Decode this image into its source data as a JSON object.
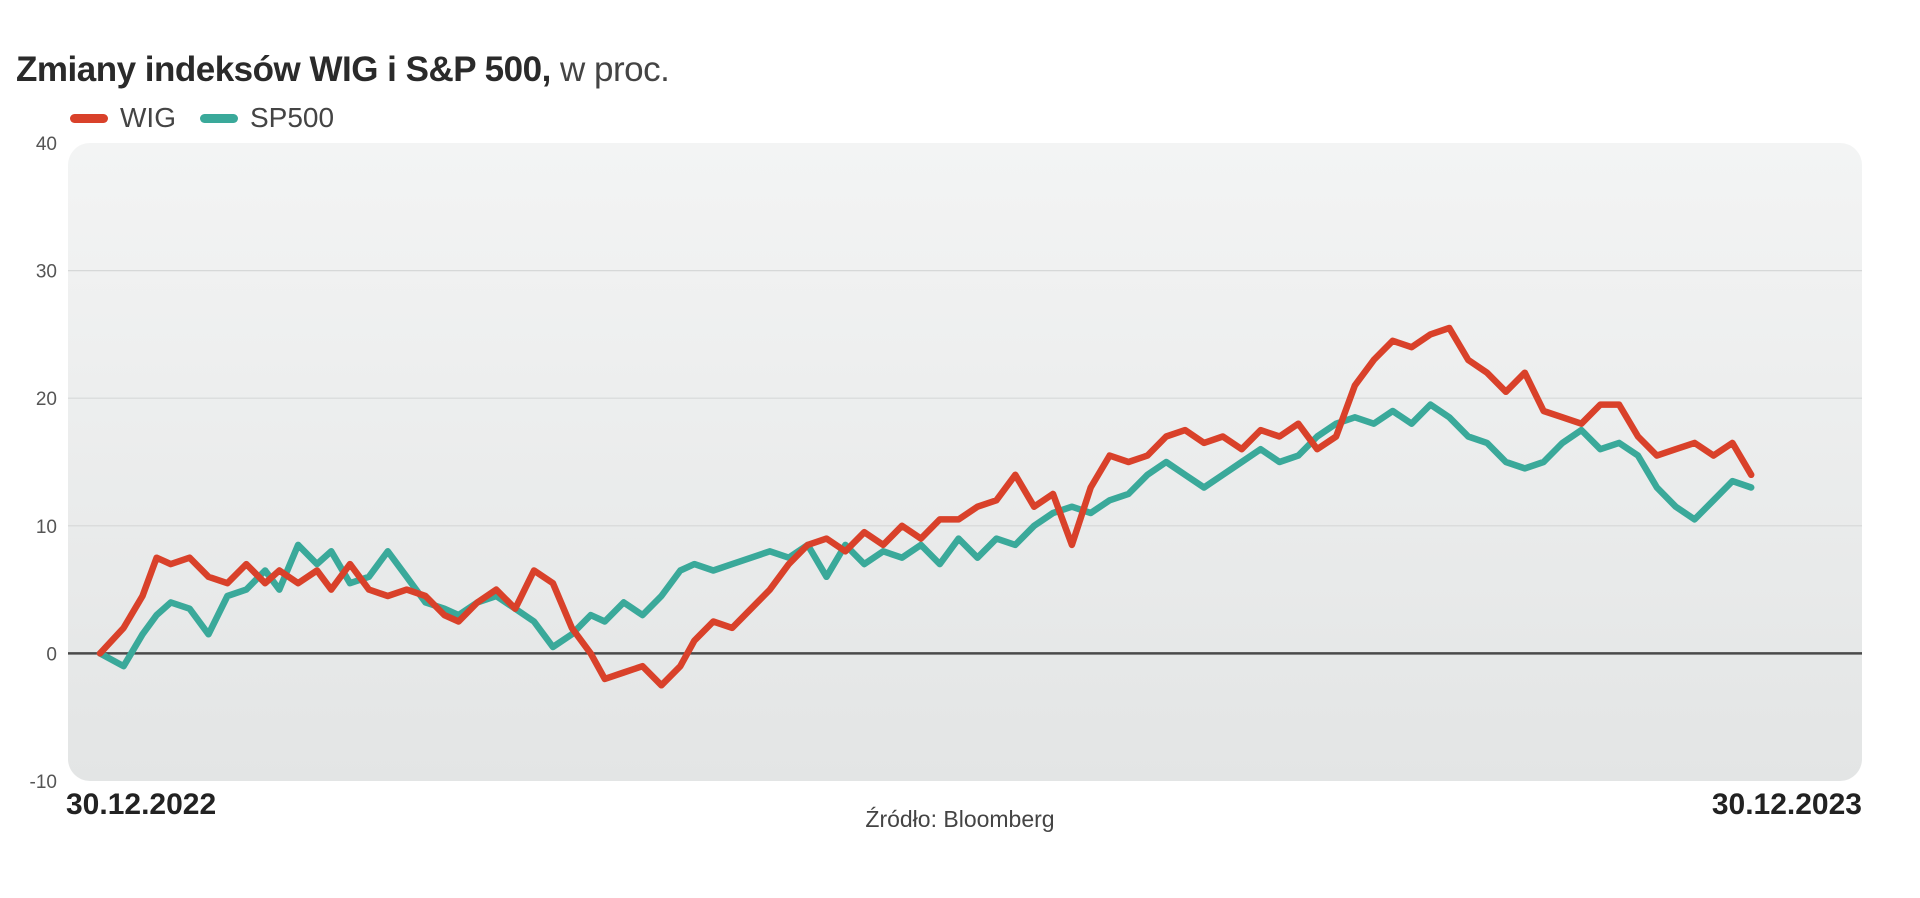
{
  "title": {
    "bold": "Zmiany indeksów WIG i S&P 500,",
    "normal": " w proc."
  },
  "source": "Źródło: Bloomberg",
  "chart_data": {
    "type": "line",
    "title": "Zmiany indeksów WIG i S&P 500, w proc.",
    "x_tick_labels": [
      "30.12.2022",
      "30.12.2023"
    ],
    "x_range": [
      "2022-12-30",
      "2023-12-30"
    ],
    "ylim": [
      -10,
      40
    ],
    "yticks": [
      -10,
      0,
      10,
      20,
      30,
      40
    ],
    "grid": true,
    "legend_position": "top-left",
    "series": [
      {
        "name": "WIG",
        "color": "#d9412a",
        "points": [
          [
            "2022-12-30",
            0
          ],
          [
            "2023-01-04",
            2
          ],
          [
            "2023-01-08",
            4.5
          ],
          [
            "2023-01-11",
            7.5
          ],
          [
            "2023-01-14",
            7
          ],
          [
            "2023-01-18",
            7.5
          ],
          [
            "2023-01-22",
            6
          ],
          [
            "2023-01-26",
            5.5
          ],
          [
            "2023-01-30",
            7
          ],
          [
            "2023-02-03",
            5.5
          ],
          [
            "2023-02-06",
            6.5
          ],
          [
            "2023-02-10",
            5.5
          ],
          [
            "2023-02-14",
            6.5
          ],
          [
            "2023-02-17",
            5
          ],
          [
            "2023-02-21",
            7
          ],
          [
            "2023-02-25",
            5
          ],
          [
            "2023-03-01",
            4.5
          ],
          [
            "2023-03-05",
            5
          ],
          [
            "2023-03-09",
            4.5
          ],
          [
            "2023-03-13",
            3
          ],
          [
            "2023-03-16",
            2.5
          ],
          [
            "2023-03-20",
            4
          ],
          [
            "2023-03-24",
            5
          ],
          [
            "2023-03-28",
            3.5
          ],
          [
            "2023-04-01",
            6.5
          ],
          [
            "2023-04-05",
            5.5
          ],
          [
            "2023-04-09",
            2
          ],
          [
            "2023-04-13",
            0
          ],
          [
            "2023-04-16",
            -2
          ],
          [
            "2023-04-20",
            -1.5
          ],
          [
            "2023-04-24",
            -1
          ],
          [
            "2023-04-28",
            -2.5
          ],
          [
            "2023-05-02",
            -1
          ],
          [
            "2023-05-05",
            1
          ],
          [
            "2023-05-09",
            2.5
          ],
          [
            "2023-05-13",
            2
          ],
          [
            "2023-05-17",
            3.5
          ],
          [
            "2023-05-21",
            5
          ],
          [
            "2023-05-25",
            7
          ],
          [
            "2023-05-29",
            8.5
          ],
          [
            "2023-06-02",
            9
          ],
          [
            "2023-06-06",
            8
          ],
          [
            "2023-06-10",
            9.5
          ],
          [
            "2023-06-14",
            8.5
          ],
          [
            "2023-06-18",
            10
          ],
          [
            "2023-06-22",
            9
          ],
          [
            "2023-06-26",
            10.5
          ],
          [
            "2023-06-30",
            10.5
          ],
          [
            "2023-07-04",
            11.5
          ],
          [
            "2023-07-08",
            12
          ],
          [
            "2023-07-12",
            14
          ],
          [
            "2023-07-16",
            11.5
          ],
          [
            "2023-07-20",
            12.5
          ],
          [
            "2023-07-24",
            8.5
          ],
          [
            "2023-07-28",
            13
          ],
          [
            "2023-08-01",
            15.5
          ],
          [
            "2023-08-05",
            15
          ],
          [
            "2023-08-09",
            15.5
          ],
          [
            "2023-08-13",
            17
          ],
          [
            "2023-08-17",
            17.5
          ],
          [
            "2023-08-21",
            16.5
          ],
          [
            "2023-08-25",
            17
          ],
          [
            "2023-08-29",
            16
          ],
          [
            "2023-09-02",
            17.5
          ],
          [
            "2023-09-06",
            17
          ],
          [
            "2023-09-10",
            18
          ],
          [
            "2023-09-14",
            16
          ],
          [
            "2023-09-18",
            17
          ],
          [
            "2023-09-22",
            21
          ],
          [
            "2023-09-26",
            23
          ],
          [
            "2023-09-30",
            24.5
          ],
          [
            "2023-10-04",
            24
          ],
          [
            "2023-10-08",
            25
          ],
          [
            "2023-10-12",
            25.5
          ],
          [
            "2023-10-16",
            23
          ],
          [
            "2023-10-20",
            22
          ],
          [
            "2023-10-24",
            20.5
          ],
          [
            "2023-10-28",
            22
          ],
          [
            "2023-11-01",
            19
          ],
          [
            "2023-11-05",
            18.5
          ],
          [
            "2023-11-09",
            18
          ],
          [
            "2023-11-13",
            19.5
          ],
          [
            "2023-11-17",
            19.5
          ],
          [
            "2023-11-21",
            17
          ],
          [
            "2023-11-25",
            15.5
          ],
          [
            "2023-11-29",
            16
          ],
          [
            "2023-12-03",
            16.5
          ],
          [
            "2023-12-07",
            15.5
          ],
          [
            "2023-12-11",
            16.5
          ],
          [
            "2023-12-15",
            14
          ]
        ]
      },
      {
        "name": "SP500",
        "color": "#3aa99a",
        "points": [
          [
            "2022-12-30",
            0
          ],
          [
            "2023-01-04",
            -1
          ],
          [
            "2023-01-08",
            1.5
          ],
          [
            "2023-01-11",
            3
          ],
          [
            "2023-01-14",
            4
          ],
          [
            "2023-01-18",
            3.5
          ],
          [
            "2023-01-22",
            1.5
          ],
          [
            "2023-01-26",
            4.5
          ],
          [
            "2023-01-30",
            5
          ],
          [
            "2023-02-03",
            6.5
          ],
          [
            "2023-02-06",
            5
          ],
          [
            "2023-02-10",
            8.5
          ],
          [
            "2023-02-14",
            7
          ],
          [
            "2023-02-17",
            8
          ],
          [
            "2023-02-21",
            5.5
          ],
          [
            "2023-02-25",
            6
          ],
          [
            "2023-03-01",
            8
          ],
          [
            "2023-03-05",
            6
          ],
          [
            "2023-03-09",
            4
          ],
          [
            "2023-03-13",
            3.5
          ],
          [
            "2023-03-16",
            3
          ],
          [
            "2023-03-20",
            4
          ],
          [
            "2023-03-24",
            4.5
          ],
          [
            "2023-03-28",
            3.5
          ],
          [
            "2023-04-01",
            2.5
          ],
          [
            "2023-04-05",
            0.5
          ],
          [
            "2023-04-09",
            1.5
          ],
          [
            "2023-04-13",
            3
          ],
          [
            "2023-04-16",
            2.5
          ],
          [
            "2023-04-20",
            4
          ],
          [
            "2023-04-24",
            3
          ],
          [
            "2023-04-28",
            4.5
          ],
          [
            "2023-05-02",
            6.5
          ],
          [
            "2023-05-05",
            7
          ],
          [
            "2023-05-09",
            6.5
          ],
          [
            "2023-05-13",
            7
          ],
          [
            "2023-05-17",
            7.5
          ],
          [
            "2023-05-21",
            8
          ],
          [
            "2023-05-25",
            7.5
          ],
          [
            "2023-05-29",
            8.5
          ],
          [
            "2023-06-02",
            6
          ],
          [
            "2023-06-06",
            8.5
          ],
          [
            "2023-06-10",
            7
          ],
          [
            "2023-06-14",
            8
          ],
          [
            "2023-06-18",
            7.5
          ],
          [
            "2023-06-22",
            8.5
          ],
          [
            "2023-06-26",
            7
          ],
          [
            "2023-06-30",
            9
          ],
          [
            "2023-07-04",
            7.5
          ],
          [
            "2023-07-08",
            9
          ],
          [
            "2023-07-12",
            8.5
          ],
          [
            "2023-07-16",
            10
          ],
          [
            "2023-07-20",
            11
          ],
          [
            "2023-07-24",
            11.5
          ],
          [
            "2023-07-28",
            11
          ],
          [
            "2023-08-01",
            12
          ],
          [
            "2023-08-05",
            12.5
          ],
          [
            "2023-08-09",
            14
          ],
          [
            "2023-08-13",
            15
          ],
          [
            "2023-08-17",
            14
          ],
          [
            "2023-08-21",
            13
          ],
          [
            "2023-08-25",
            14
          ],
          [
            "2023-08-29",
            15
          ],
          [
            "2023-09-02",
            16
          ],
          [
            "2023-09-06",
            15
          ],
          [
            "2023-09-10",
            15.5
          ],
          [
            "2023-09-14",
            17
          ],
          [
            "2023-09-18",
            18
          ],
          [
            "2023-09-22",
            18.5
          ],
          [
            "2023-09-26",
            18
          ],
          [
            "2023-09-30",
            19
          ],
          [
            "2023-10-04",
            18
          ],
          [
            "2023-10-08",
            19.5
          ],
          [
            "2023-10-12",
            18.5
          ],
          [
            "2023-10-16",
            17
          ],
          [
            "2023-10-20",
            16.5
          ],
          [
            "2023-10-24",
            15
          ],
          [
            "2023-10-28",
            14.5
          ],
          [
            "2023-11-01",
            15
          ],
          [
            "2023-11-05",
            16.5
          ],
          [
            "2023-11-09",
            17.5
          ],
          [
            "2023-11-13",
            16
          ],
          [
            "2023-11-17",
            16.5
          ],
          [
            "2023-11-21",
            15.5
          ],
          [
            "2023-11-25",
            13
          ],
          [
            "2023-11-29",
            11.5
          ],
          [
            "2023-12-03",
            10.5
          ],
          [
            "2023-12-07",
            12
          ],
          [
            "2023-12-11",
            13.5
          ],
          [
            "2023-12-15",
            13
          ]
        ]
      }
    ]
  }
}
